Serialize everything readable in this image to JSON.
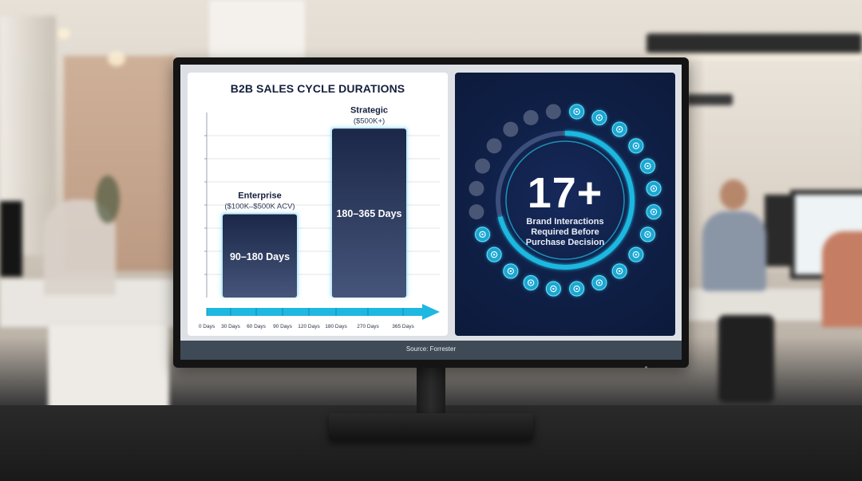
{
  "chart_data": {
    "type": "bar",
    "title": "B2B SALES CYCLE DURATIONS",
    "xlabel": "",
    "ylabel": "",
    "x_axis_ticks": [
      "0 Days",
      "30 Days",
      "60 Days",
      "90 Days",
      "120 Days",
      "180 Days",
      "270 Days",
      "365 Days"
    ],
    "bars": [
      {
        "name": "Enterprise",
        "subtitle": "($100K–$500K ACV)",
        "label": "90–180 Days",
        "min": 90,
        "max": 180
      },
      {
        "name": "Strategic",
        "subtitle": "($500K+)",
        "label": "180–365 Days",
        "min": 180,
        "max": 365
      }
    ],
    "ylim": [
      0,
      400
    ],
    "grid": true
  },
  "stat": {
    "value": "17+",
    "label_lines": [
      "Brand Interactions",
      "Required Before",
      "Purchase Decision"
    ],
    "total_dots": 24,
    "active_dots": 17,
    "ring_progress": 0.71
  },
  "footer": {
    "source": "Source: Forrester"
  },
  "colors": {
    "navy": "#15203d",
    "panel_dark": "#0f1f45",
    "accent": "#1fb8e0",
    "inactive_dot": "#4a5675"
  },
  "icons": [
    "person-icon",
    "chat-icon",
    "mail-icon",
    "document-icon",
    "handshake-icon",
    "screen-icon",
    "network-icon",
    "globe-icon",
    "ear-icon",
    "phone-icon",
    "star-icon",
    "monitor-icon",
    "tag-icon",
    "search-icon",
    "bulb-icon",
    "calendar-icon",
    "like-icon"
  ]
}
